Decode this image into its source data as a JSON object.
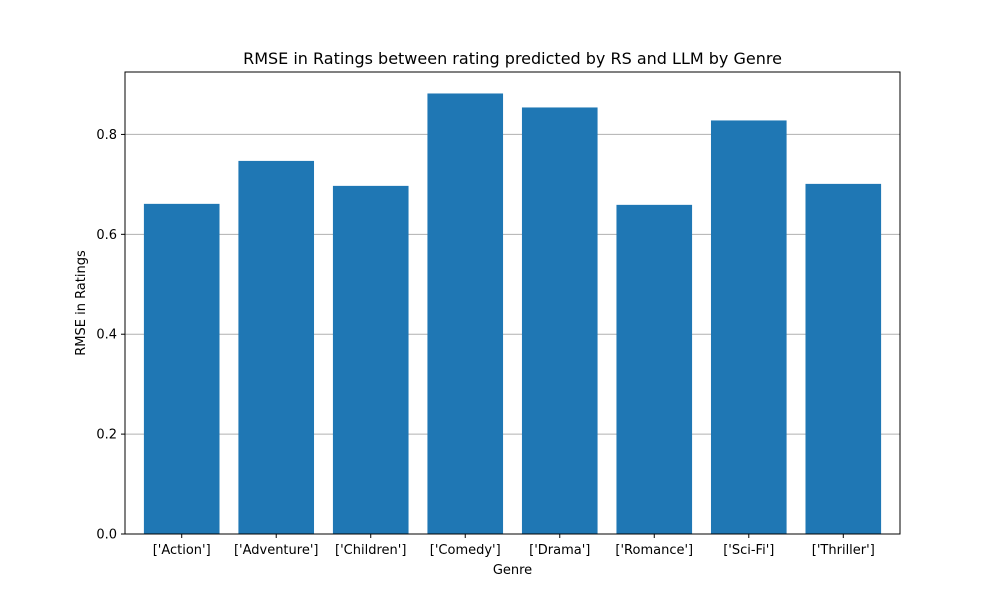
{
  "chart_data": {
    "type": "bar",
    "title": "RMSE in Ratings between rating predicted by RS and LLM by Genre",
    "xlabel": "Genre",
    "ylabel": "RMSE in Ratings",
    "categories": [
      "['Action']",
      "['Adventure']",
      "['Children']",
      "['Comedy']",
      "['Drama']",
      "['Romance']",
      "['Sci-Fi']",
      "['Thriller']"
    ],
    "values": [
      0.661,
      0.747,
      0.697,
      0.882,
      0.854,
      0.659,
      0.828,
      0.701
    ],
    "ylim": [
      0,
      0.925
    ],
    "yticks": [
      0.0,
      0.2,
      0.4,
      0.6,
      0.8
    ],
    "ytick_labels": [
      "0.0",
      "0.2",
      "0.4",
      "0.6",
      "0.8"
    ],
    "grid": "y-axis",
    "legend": "none",
    "bar_color": "#1f77b4",
    "grid_color": "#b0b0b0"
  }
}
